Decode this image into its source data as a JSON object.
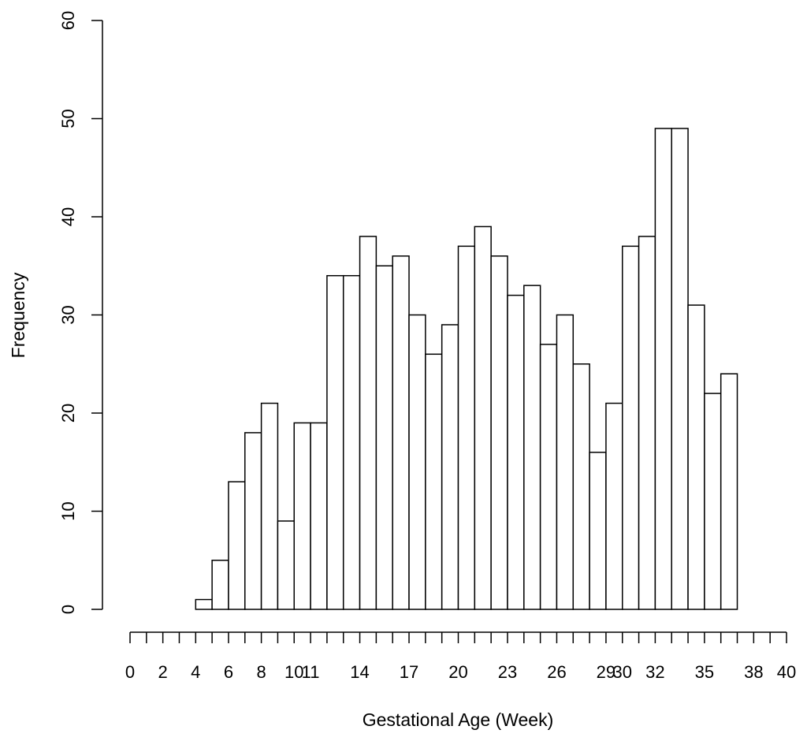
{
  "chart_data": {
    "type": "bar",
    "title": "",
    "xlabel": "Gestational Age (Week)",
    "ylabel": "Frequency",
    "ylim": [
      0,
      60
    ],
    "yticks": [
      0,
      10,
      20,
      30,
      40,
      50,
      60
    ],
    "xlim": [
      0,
      40
    ],
    "xticks_all": [
      0,
      1,
      2,
      3,
      4,
      5,
      6,
      7,
      8,
      9,
      10,
      11,
      12,
      13,
      14,
      15,
      16,
      17,
      18,
      19,
      20,
      21,
      22,
      23,
      24,
      25,
      26,
      27,
      28,
      29,
      30,
      31,
      32,
      33,
      34,
      35,
      36,
      37,
      38,
      39,
      40
    ],
    "xtick_labels": [
      "0",
      "2",
      "4",
      "6",
      "8",
      "10",
      "11",
      "14",
      "17",
      "20",
      "23",
      "26",
      "29",
      "30",
      "32",
      "35",
      "38",
      "40"
    ],
    "xtick_label_positions": [
      0,
      2,
      4,
      6,
      8,
      10,
      11,
      14,
      17,
      20,
      23,
      26,
      29,
      30,
      32,
      35,
      38,
      40
    ],
    "bins_start": [
      4,
      5,
      6,
      7,
      8,
      9,
      10,
      11,
      12,
      13,
      14,
      15,
      16,
      17,
      18,
      19,
      20,
      21,
      22,
      23,
      24,
      25,
      26,
      27,
      28,
      29,
      30,
      31,
      32,
      33,
      34,
      35,
      36
    ],
    "values": [
      1,
      5,
      13,
      18,
      21,
      9,
      19,
      19,
      34,
      34,
      38,
      35,
      36,
      30,
      26,
      29,
      37,
      39,
      36,
      32,
      33,
      27,
      30,
      25,
      16,
      21,
      37,
      38,
      49,
      49,
      31,
      22,
      24
    ],
    "grid": false,
    "legend": "none"
  }
}
